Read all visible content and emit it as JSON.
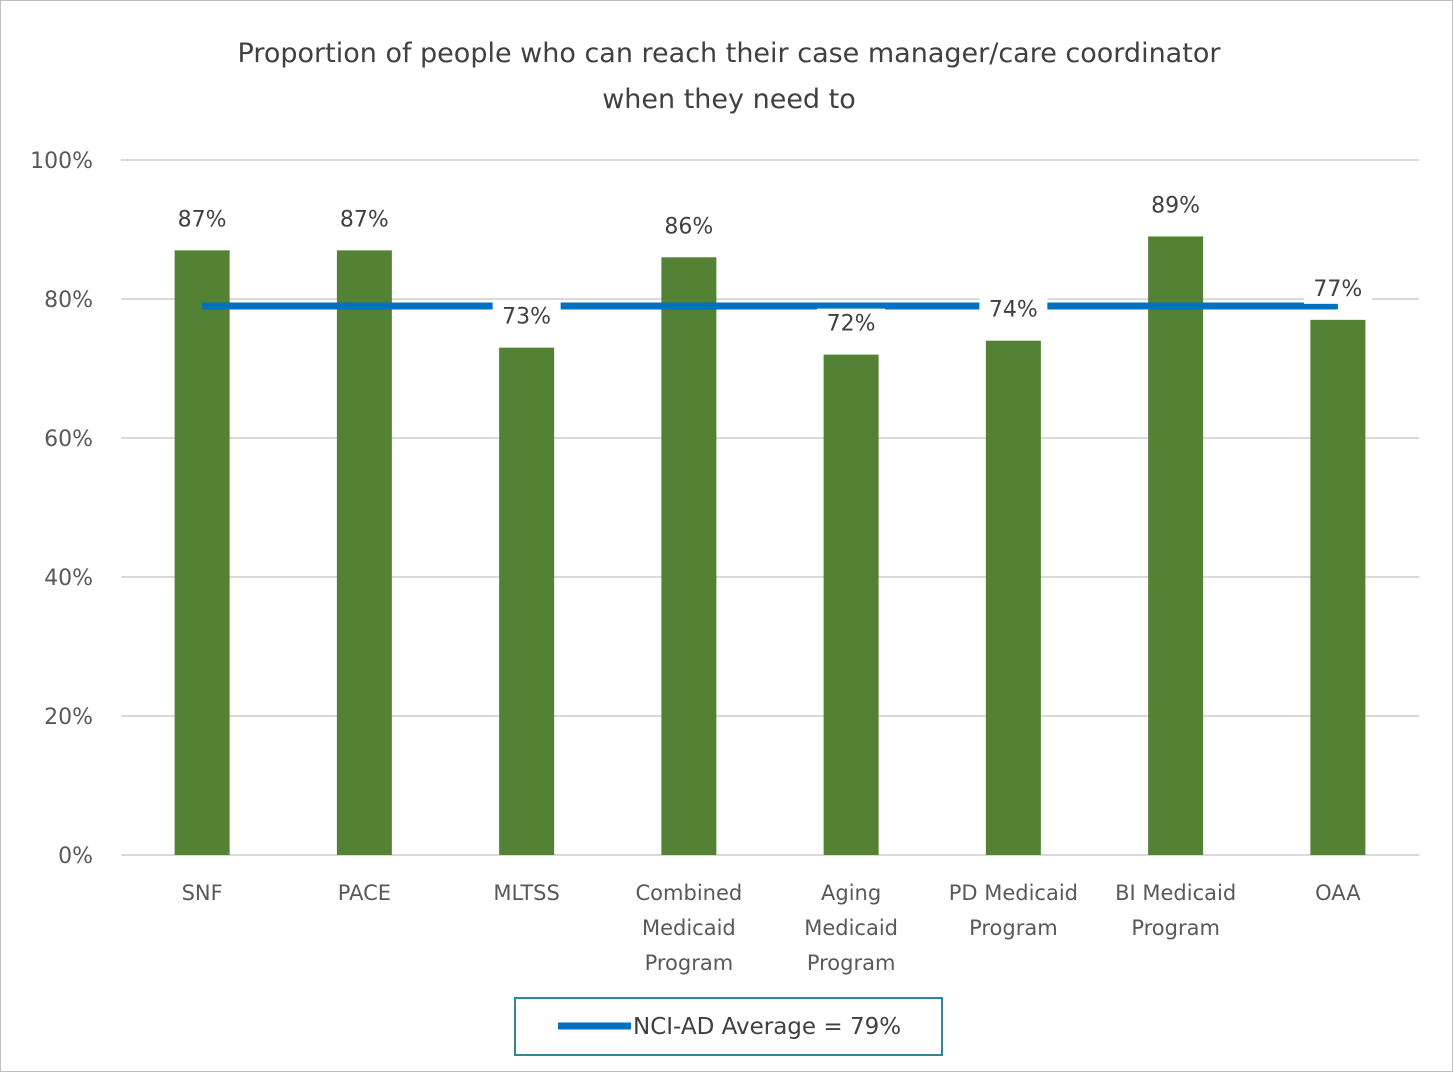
{
  "chart_data": {
    "type": "bar",
    "title_lines": [
      "Proportion of people who can reach their case manager/care coordinator",
      "when they need to"
    ],
    "xlabel": "",
    "ylabel": "",
    "categories": [
      [
        "SNF"
      ],
      [
        "PACE"
      ],
      [
        "MLTSS"
      ],
      [
        "Combined",
        "Medicaid",
        "Program"
      ],
      [
        "Aging",
        "Medicaid",
        "Program"
      ],
      [
        "PD Medicaid",
        "Program"
      ],
      [
        "BI Medicaid",
        "Program"
      ],
      [
        "OAA"
      ]
    ],
    "values": [
      87,
      87,
      73,
      86,
      72,
      74,
      89,
      77
    ],
    "data_labels": [
      "87%",
      "87%",
      "73%",
      "86%",
      "72%",
      "74%",
      "89%",
      "77%"
    ],
    "ylim": [
      0,
      100
    ],
    "y_ticks": [
      0,
      20,
      40,
      60,
      80,
      100
    ],
    "y_tick_labels": [
      "0%",
      "20%",
      "40%",
      "60%",
      "80%",
      "100%"
    ],
    "grid": true,
    "reference_line": {
      "value": 79,
      "label": "NCI-AD Average = 79%"
    },
    "legend_position": "bottom",
    "colors": {
      "bar": "#548235",
      "reference_line": "#0070c0",
      "grid": "#d9d9d9",
      "legend_border": "#31849b"
    }
  }
}
